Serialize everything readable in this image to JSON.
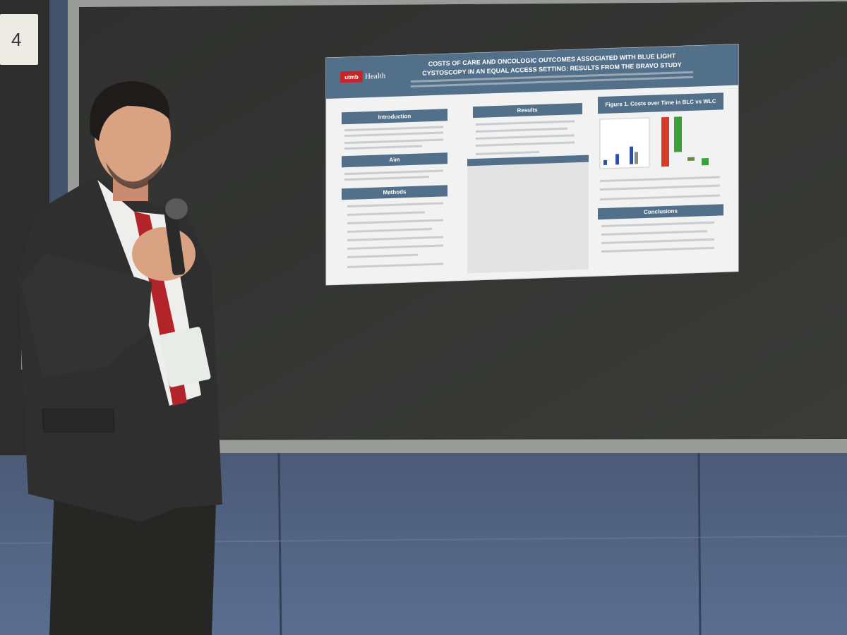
{
  "sign": {
    "number": "4"
  },
  "poster": {
    "logo": {
      "mark": "utmb",
      "text": "Health"
    },
    "title_line1": "COSTS OF CARE AND ONCOLOGIC OUTCOMES ASSOCIATED WITH BLUE LIGHT",
    "title_line2": "CYSTOSCOPY IN AN EQUAL ACCESS SETTING: RESULTS FROM THE BRAVO STUDY",
    "sections": {
      "introduction": "Introduction",
      "aim": "Aim",
      "methods": "Methods",
      "results": "Results",
      "figure": "Figure 1. Costs over Time in BLC vs WLC",
      "conclusions": "Conclusions"
    }
  }
}
